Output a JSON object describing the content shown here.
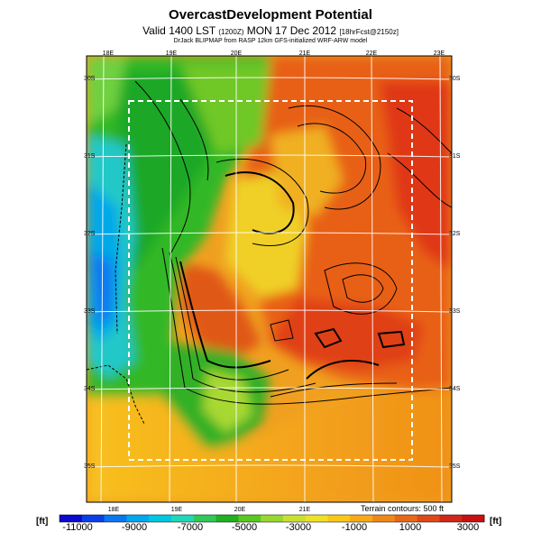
{
  "title": "OvercastDevelopment Potential",
  "subtitle_main": "Valid 1400 LST",
  "subtitle_small": "(1200Z)",
  "subtitle_date": "MON 17 Dec 2012",
  "subtitle_fcst": "[18hrFcst@2150z]",
  "credit": "DrJack BLIPMAP from RASP 12km GFS-initialized WRF-ARW model",
  "terrain_note": "Terrain contours: 500 ft",
  "units": {
    "left": "[ft]",
    "right": "[ft]"
  },
  "colorbar": {
    "labels": [
      "-11000",
      "-9000",
      "-7000",
      "-5000",
      "-3000",
      "-1000",
      "1000",
      "3000"
    ],
    "colors": [
      "#0a0ad0",
      "#0a3fe8",
      "#0878f0",
      "#00a8f0",
      "#00c8e0",
      "#20d8b8",
      "#30c858",
      "#20b020",
      "#58c820",
      "#98d830",
      "#c8e030",
      "#f0e028",
      "#f8c818",
      "#f8a818",
      "#f08818",
      "#e86818",
      "#e04818",
      "#d02818",
      "#c81010"
    ]
  },
  "axes": {
    "top": [
      "18E",
      "19E",
      "20E",
      "21E",
      "22E",
      "23E"
    ],
    "bottom": [
      "18E",
      "19E",
      "20E",
      "21E"
    ],
    "left": [
      "30S",
      "31S",
      "32S",
      "33S",
      "34S",
      "35S"
    ],
    "right": [
      "30S",
      "31S",
      "32S",
      "33S",
      "34S",
      "35S"
    ]
  }
}
